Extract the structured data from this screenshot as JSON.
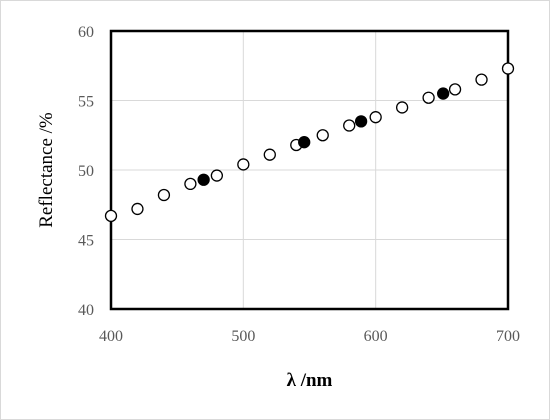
{
  "chart_data": {
    "type": "scatter",
    "xlabel": "λ /nm",
    "ylabel": "Reflectance /%",
    "xlim": [
      400,
      700
    ],
    "ylim": [
      40,
      60
    ],
    "x_ticks": [
      "400",
      "500",
      "600",
      "700"
    ],
    "y_ticks": [
      "40",
      "45",
      "50",
      "55",
      "60"
    ],
    "grid": true,
    "legend": "none",
    "series": [
      {
        "marker": "open-circle",
        "color": "#000000",
        "points": [
          {
            "x": 400,
            "y": 46.7
          },
          {
            "x": 420,
            "y": 47.2
          },
          {
            "x": 440,
            "y": 48.2
          },
          {
            "x": 460,
            "y": 49.0
          },
          {
            "x": 480,
            "y": 49.6
          },
          {
            "x": 500,
            "y": 50.4
          },
          {
            "x": 520,
            "y": 51.1
          },
          {
            "x": 540,
            "y": 51.8
          },
          {
            "x": 560,
            "y": 52.5
          },
          {
            "x": 580,
            "y": 53.2
          },
          {
            "x": 600,
            "y": 53.8
          },
          {
            "x": 620,
            "y": 54.5
          },
          {
            "x": 640,
            "y": 55.2
          },
          {
            "x": 660,
            "y": 55.8
          },
          {
            "x": 680,
            "y": 56.5
          },
          {
            "x": 700,
            "y": 57.3
          }
        ]
      },
      {
        "marker": "filled-circle",
        "color": "#000000",
        "points": [
          {
            "x": 470,
            "y": 49.3
          },
          {
            "x": 546,
            "y": 52.0
          },
          {
            "x": 589,
            "y": 53.5
          },
          {
            "x": 651,
            "y": 55.5
          }
        ]
      }
    ]
  }
}
